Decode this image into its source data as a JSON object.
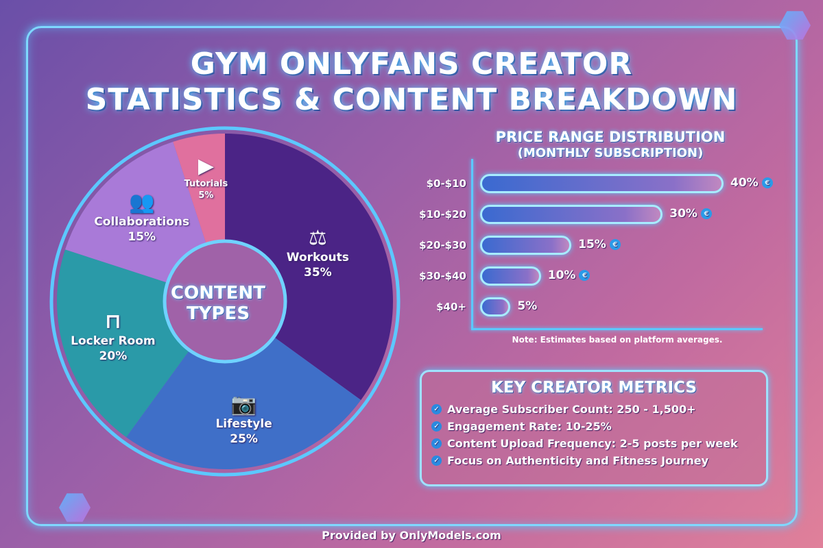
{
  "title_line1": "GYM ONLYFANS CREATOR",
  "title_line2": "STATISTICS & CONTENT BREAKDOWN",
  "chart_data": [
    {
      "type": "pie",
      "title": "CONTENT TYPES",
      "start": "top",
      "direction": "clockwise",
      "slices": [
        {
          "label": "Workouts",
          "value": 35,
          "display": "35%",
          "color": "#4b2486",
          "icon": "kettlebell-icon"
        },
        {
          "label": "Lifestyle",
          "value": 25,
          "display": "25%",
          "color": "#3f6fc8",
          "icon": "camera-icon"
        },
        {
          "label": "Locker Room",
          "value": 20,
          "display": "20%",
          "color": "#2a9aa8",
          "icon": "bench-icon"
        },
        {
          "label": "Collaborations",
          "value": 15,
          "display": "15%",
          "color": "#a97ad8",
          "icon": "users-icon"
        },
        {
          "label": "Tutorials",
          "value": 5,
          "display": "5%",
          "color": "#e0709e",
          "icon": "play-icon"
        }
      ]
    },
    {
      "type": "bar",
      "orientation": "horizontal",
      "title": "PRICE RANGE DISTRIBUTION",
      "subtitle": "(MONTHLY SUBSCRIPTION)",
      "categories": [
        "$0-$10",
        "$10-$20",
        "$20-$30",
        "$30-$40",
        "$40+"
      ],
      "values": [
        40,
        30,
        15,
        10,
        5
      ],
      "labels": [
        "40%",
        "30%",
        "15%",
        "10%",
        "5%"
      ],
      "coin_icon": [
        true,
        true,
        true,
        true,
        false
      ],
      "note": "Note: Estimates based on platform averages."
    }
  ],
  "metrics": {
    "title": "KEY CREATOR METRICS",
    "items": [
      "Average Subscriber Count: 250 - 1,500+",
      "Engagement Rate: 10-25%",
      "Content Upload Frequency: 2-5 posts per week",
      "Focus on Authenticity and Fitness Journey"
    ]
  },
  "icons": {
    "coin": "€",
    "check": "✓"
  },
  "footer": "Provided by OnlyModels.com"
}
